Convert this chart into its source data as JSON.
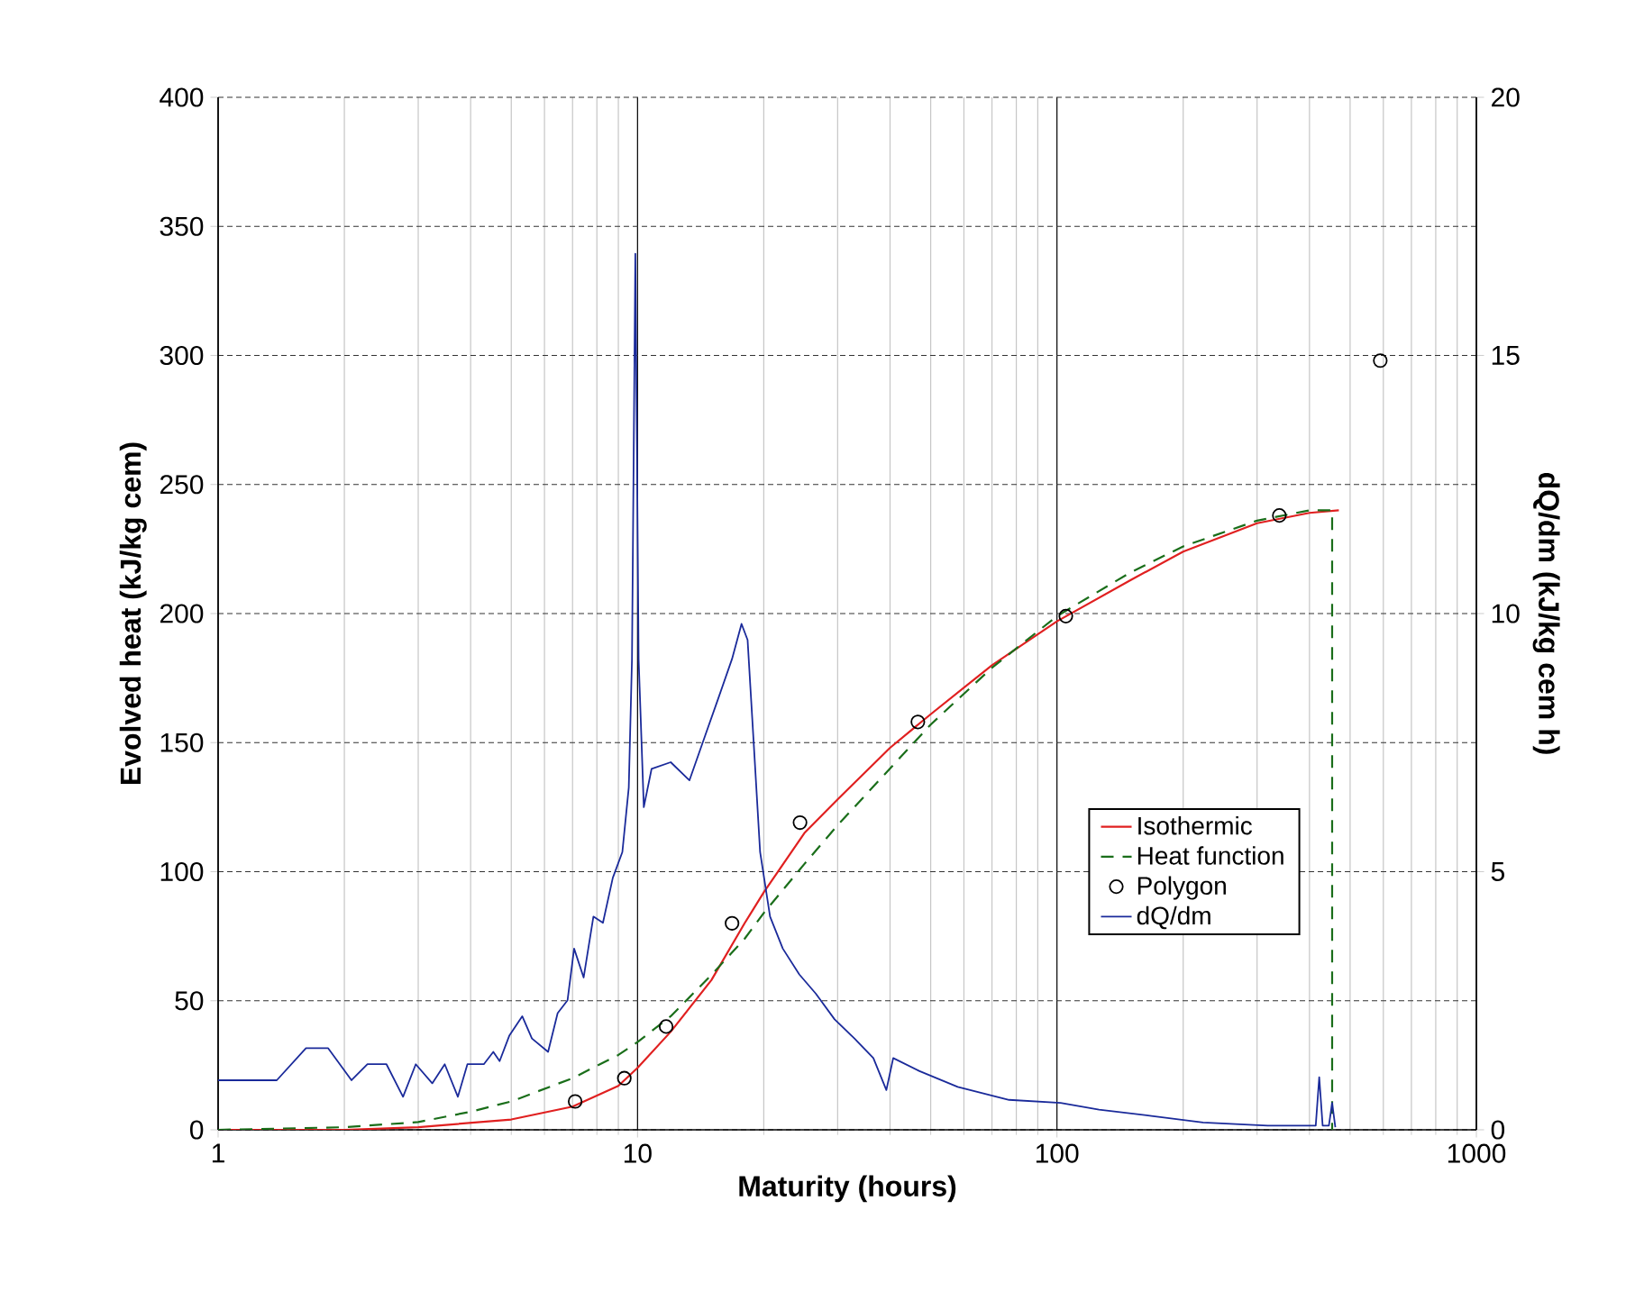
{
  "chart_data": {
    "type": "line",
    "xlabel": "Maturity (hours)",
    "ylabel": "Evolved heat (kJ/kg cem)",
    "y2label": "dQ/dm (kJ/kg cem h)",
    "log": "x",
    "xlim": [
      1,
      1000
    ],
    "xticks": [
      1,
      10,
      100,
      1000
    ],
    "ylim": [
      0,
      400
    ],
    "yticks": [
      0,
      50,
      100,
      150,
      200,
      250,
      300,
      350,
      400
    ],
    "y2lim": [
      0,
      20
    ],
    "y2ticks": [
      0,
      5,
      10,
      15,
      20
    ],
    "grid": true,
    "legend": "right",
    "series": [
      {
        "name": "Isothermic",
        "color": "#e02020",
        "line_style": "solid",
        "marker": "none",
        "x": [
          1,
          2,
          3,
          5,
          7,
          9,
          10,
          12,
          15,
          18,
          20,
          25,
          30,
          40,
          50,
          70,
          100,
          150,
          200,
          300,
          400,
          470
        ],
        "values": [
          0,
          0,
          1,
          4,
          9,
          17,
          24,
          38,
          58,
          80,
          92,
          115,
          128,
          148,
          161,
          180,
          197,
          213,
          224,
          235,
          239,
          240
        ]
      },
      {
        "name": "Heat function",
        "color": "#1a6e1a",
        "line_style": "dashed",
        "marker": "none",
        "x": [
          1,
          2,
          3,
          4,
          5,
          7,
          9,
          10,
          12,
          15,
          18,
          20,
          25,
          30,
          40,
          50,
          70,
          100,
          150,
          200,
          300,
          400,
          453,
          453
        ],
        "values": [
          0,
          1,
          3,
          7,
          11,
          20,
          29,
          34,
          44,
          60,
          74,
          84,
          103,
          118,
          140,
          157,
          179,
          199,
          216,
          226,
          236,
          240,
          240,
          0
        ]
      },
      {
        "name": "Polygon",
        "type": "scatter",
        "color": "#000000",
        "marker": "circle",
        "x": [
          7.1,
          9.3,
          11.7,
          16.8,
          24.4,
          46.6,
          105,
          339,
          590
        ],
        "values": [
          11,
          20,
          40,
          80,
          119,
          158,
          199,
          238,
          298
        ]
      },
      {
        "name": "dQ/dm",
        "axis": "y2",
        "color": "#1a2a9a",
        "line_style": "solid",
        "marker": "none",
        "x": [
          1,
          1.38,
          1.62,
          1.83,
          2.08,
          2.27,
          2.52,
          2.76,
          2.96,
          3.24,
          3.47,
          3.73,
          3.93,
          4.3,
          4.53,
          4.69,
          4.95,
          5.31,
          5.6,
          6.12,
          6.45,
          6.81,
          7.06,
          7.44,
          7.85,
          8.27,
          8.73,
          9.2,
          9.53,
          9.7,
          9.88,
          10.06,
          10.35,
          10.8,
          12.0,
          13.3,
          14.5,
          15.6,
          16.8,
          17.7,
          18.3,
          19.0,
          19.6,
          20.7,
          22.2,
          24.3,
          26.6,
          29.5,
          32.9,
          36.5,
          39.2,
          40.7,
          46.9,
          58,
          76.9,
          102,
          126,
          168,
          223,
          318,
          393,
          414,
          422,
          430,
          445,
          453,
          461
        ],
        "values": [
          0.96,
          0.96,
          1.58,
          1.58,
          0.96,
          1.27,
          1.27,
          0.64,
          1.27,
          0.9,
          1.27,
          0.64,
          1.27,
          1.27,
          1.51,
          1.33,
          1.83,
          2.2,
          1.77,
          1.51,
          2.26,
          2.51,
          3.51,
          2.95,
          4.13,
          4.01,
          4.88,
          5.38,
          6.63,
          9.12,
          16.97,
          9.12,
          6.25,
          6.99,
          7.12,
          6.77,
          7.64,
          8.37,
          9.12,
          9.8,
          9.49,
          7.25,
          5.38,
          4.13,
          3.51,
          3.01,
          2.64,
          2.14,
          1.77,
          1.39,
          0.77,
          1.39,
          1.14,
          0.83,
          0.58,
          0.52,
          0.39,
          0.27,
          0.14,
          0.08,
          0.08,
          0.08,
          1.02,
          0.08,
          0.08,
          0.52,
          0.05
        ]
      }
    ]
  }
}
